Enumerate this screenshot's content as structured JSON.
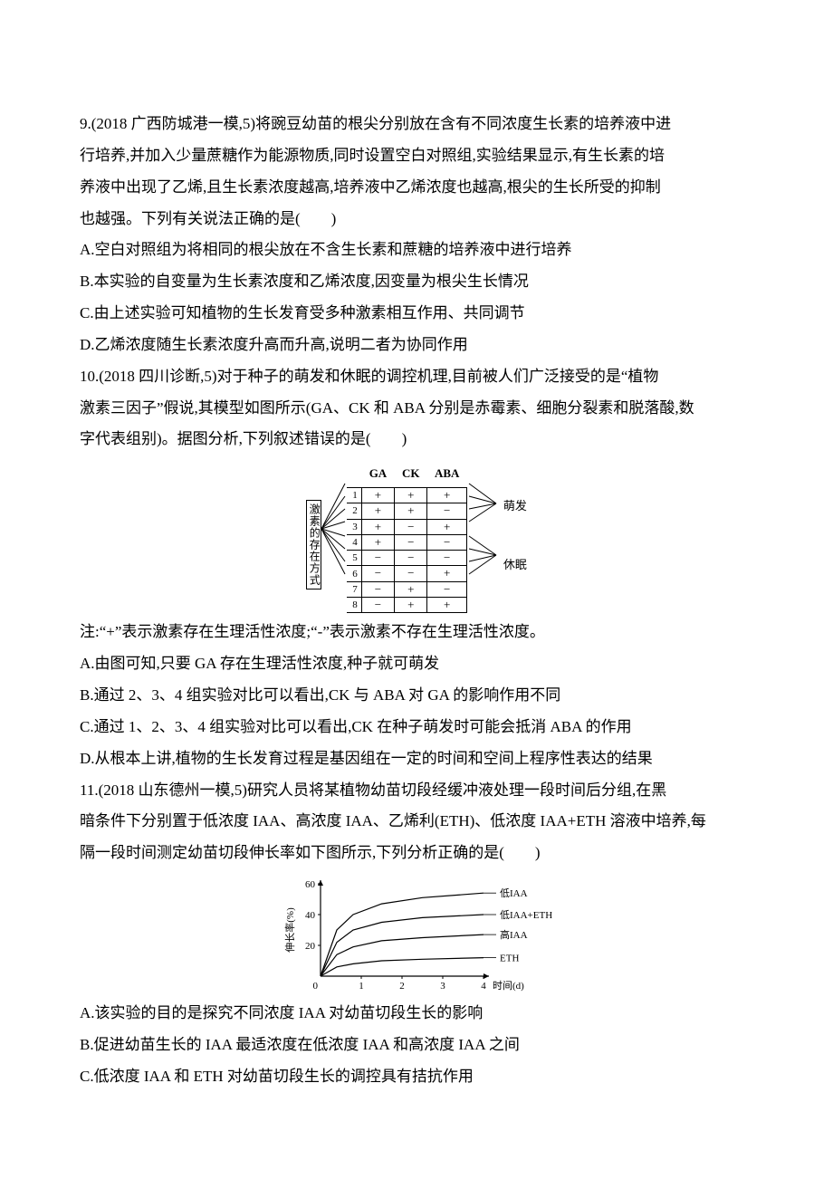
{
  "q9": {
    "stem1": "9.(2018 广西防城港一模,5)将豌豆幼苗的根尖分别放在含有不同浓度生长素的培养液中进",
    "stem2": "行培养,并加入少量蔗糖作为能源物质,同时设置空白对照组,实验结果显示,有生长素的培",
    "stem3": "养液中出现了乙烯,且生长素浓度越高,培养液中乙烯浓度也越高,根尖的生长所受的抑制",
    "stem4": "也越强。下列有关说法正确的是(　　)",
    "a": "A.空白对照组为将相同的根尖放在不含生长素和蔗糖的培养液中进行培养",
    "b": "B.本实验的自变量为生长素浓度和乙烯浓度,因变量为根尖生长情况",
    "c": "C.由上述实验可知植物的生长发育受多种激素相互作用、共同调节",
    "d": "D.乙烯浓度随生长素浓度升高而升高,说明二者为协同作用"
  },
  "q10": {
    "stem1": "10.(2018 四川诊断,5)对于种子的萌发和休眠的调控机理,目前被人们广泛接受的是“植物",
    "stem2": "激素三因子”假说,其模型如图所示(GA、CK 和 ABA 分别是赤霉素、细胞分裂素和脱落酸,数",
    "stem3": "字代表组别)。据图分析,下列叙述错误的是(　　)",
    "note": "注:“+”表示激素存在生理活性浓度;“-”表示激素不存在生理活性浓度。",
    "a": "A.由图可知,只要 GA 存在生理活性浓度,种子就可萌发",
    "b": "B.通过 2、3、4 组实验对比可以看出,CK 与 ABA 对 GA 的影响作用不同",
    "c": "C.通过 1、2、3、4 组实验对比可以看出,CK 在种子萌发时可能会抵消 ABA 的作用",
    "d": "D.从根本上讲,植物的生长发育过程是基因组在一定的时间和空间上程序性表达的结果",
    "table": {
      "headers": [
        "GA",
        "CK",
        "ABA"
      ],
      "rows": [
        {
          "n": "1",
          "ga": "+",
          "ck": "+",
          "aba": "+"
        },
        {
          "n": "2",
          "ga": "+",
          "ck": "+",
          "aba": "−"
        },
        {
          "n": "3",
          "ga": "+",
          "ck": "−",
          "aba": "+"
        },
        {
          "n": "4",
          "ga": "+",
          "ck": "−",
          "aba": "−"
        },
        {
          "n": "5",
          "ga": "−",
          "ck": "−",
          "aba": "−"
        },
        {
          "n": "6",
          "ga": "−",
          "ck": "−",
          "aba": "+"
        },
        {
          "n": "7",
          "ga": "−",
          "ck": "+",
          "aba": "−"
        },
        {
          "n": "8",
          "ga": "−",
          "ck": "+",
          "aba": "+"
        }
      ],
      "left_label": "激素的存在方式",
      "right_label_top": "萌发",
      "right_label_bottom": "休眠"
    }
  },
  "q11": {
    "stem1": "11.(2018 山东德州一模,5)研究人员将某植物幼苗切段经缓冲液处理一段时间后分组,在黑",
    "stem2": "暗条件下分别置于低浓度 IAA、高浓度 IAA、乙烯利(ETH)、低浓度 IAA+ETH 溶液中培养,每",
    "stem3": "隔一段时间测定幼苗切段伸长率如下图所示,下列分析正确的是(　　)",
    "a": "A.该实验的目的是探究不同浓度 IAA 对幼苗切段生长的影响",
    "b": "B.促进幼苗生长的 IAA 最适浓度在低浓度 IAA 和高浓度 IAA 之间",
    "c": "C.低浓度 IAA 和 ETH 对幼苗切段生长的调控具有拮抗作用",
    "chart": {
      "type": "line",
      "ylabel": "伸长率(%)",
      "xlabel": "时间(d)",
      "ylabel_fontsize": 11,
      "xlabel_fontsize": 11,
      "xlim": [
        0,
        4
      ],
      "ylim": [
        0,
        60
      ],
      "xticks": [
        1,
        2,
        3,
        4
      ],
      "yticks": [
        20,
        40,
        60
      ],
      "axis_color": "#000000",
      "line_color": "#000000",
      "line_width": 1.2,
      "series": [
        {
          "label": "低IAA",
          "pts": [
            [
              0,
              0
            ],
            [
              0.4,
              30
            ],
            [
              0.8,
              40
            ],
            [
              1.5,
              47
            ],
            [
              2.5,
              51
            ],
            [
              4,
              54
            ]
          ]
        },
        {
          "label": "低IAA+ETH",
          "pts": [
            [
              0,
              0
            ],
            [
              0.4,
              22
            ],
            [
              0.8,
              30
            ],
            [
              1.5,
              35
            ],
            [
              2.5,
              38
            ],
            [
              4,
              40
            ]
          ]
        },
        {
          "label": "高IAA",
          "pts": [
            [
              0,
              0
            ],
            [
              0.4,
              14
            ],
            [
              0.8,
              19
            ],
            [
              1.5,
              23
            ],
            [
              2.5,
              25
            ],
            [
              4,
              27
            ]
          ]
        },
        {
          "label": "ETH",
          "pts": [
            [
              0,
              0
            ],
            [
              0.4,
              6
            ],
            [
              0.8,
              8
            ],
            [
              1.5,
              10
            ],
            [
              2.5,
              11
            ],
            [
              4,
              12
            ]
          ]
        }
      ]
    }
  }
}
